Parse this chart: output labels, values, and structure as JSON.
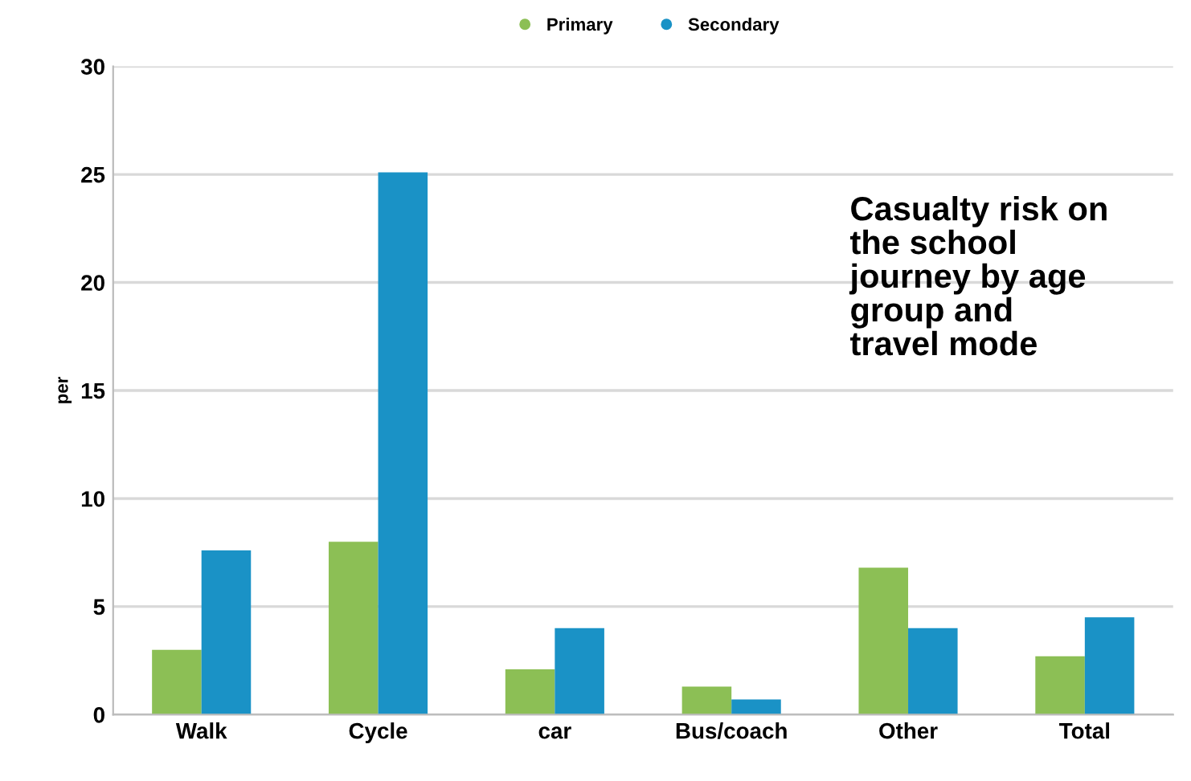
{
  "chart_data": {
    "type": "bar",
    "title": "Casualty risk on\nthe school\njourney by age\ngroup and\ntravel mode",
    "ylabel": "per",
    "categories": [
      "Walk",
      "Cycle",
      "car",
      "Bus/coach",
      "Other",
      "Total"
    ],
    "series": [
      {
        "name": "Primary",
        "color": "#8cbf55",
        "values": [
          3.0,
          8.0,
          2.1,
          1.3,
          6.8,
          2.7
        ]
      },
      {
        "name": "Secondary",
        "color": "#1a92c6",
        "values": [
          7.6,
          25.1,
          4.0,
          0.7,
          4.0,
          4.5
        ]
      }
    ],
    "ylim": [
      0,
      30
    ],
    "yticks": [
      0,
      5,
      10,
      15,
      20,
      25,
      30
    ],
    "grid": "y",
    "legend": "top"
  }
}
